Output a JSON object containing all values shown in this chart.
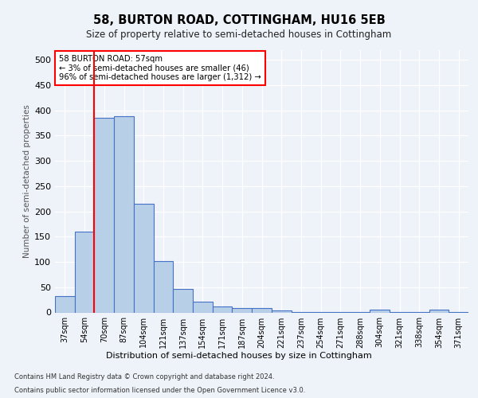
{
  "title1": "58, BURTON ROAD, COTTINGHAM, HU16 5EB",
  "title2": "Size of property relative to semi-detached houses in Cottingham",
  "xlabel": "Distribution of semi-detached houses by size in Cottingham",
  "ylabel": "Number of semi-detached properties",
  "categories": [
    "37sqm",
    "54sqm",
    "70sqm",
    "87sqm",
    "104sqm",
    "121sqm",
    "137sqm",
    "154sqm",
    "171sqm",
    "187sqm",
    "204sqm",
    "221sqm",
    "237sqm",
    "254sqm",
    "271sqm",
    "288sqm",
    "304sqm",
    "321sqm",
    "338sqm",
    "354sqm",
    "371sqm"
  ],
  "values": [
    32,
    160,
    385,
    388,
    215,
    102,
    46,
    22,
    12,
    8,
    9,
    4,
    1,
    1,
    1,
    1,
    5,
    1,
    1,
    6,
    1
  ],
  "bar_color": "#b8cfe8",
  "bar_edge_color": "#4472c4",
  "red_line_x": 1.5,
  "annotation_text": "58 BURTON ROAD: 57sqm\n← 3% of semi-detached houses are smaller (46)\n96% of semi-detached houses are larger (1,312) →",
  "ylim": [
    0,
    520
  ],
  "yticks": [
    0,
    50,
    100,
    150,
    200,
    250,
    300,
    350,
    400,
    450,
    500
  ],
  "footnote1": "Contains HM Land Registry data © Crown copyright and database right 2024.",
  "footnote2": "Contains public sector information licensed under the Open Government Licence v3.0.",
  "bg_color": "#eef2f9"
}
